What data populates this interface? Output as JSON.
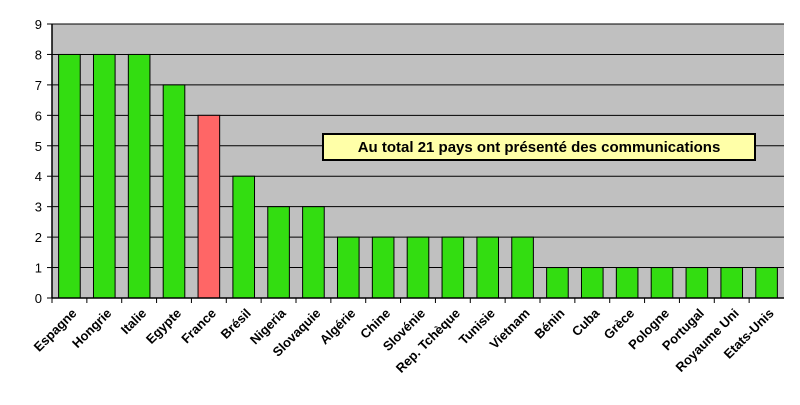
{
  "chart_data": {
    "type": "bar",
    "categories": [
      "Espagne",
      "Hongrie",
      "Italie",
      "Egypte",
      "France",
      "Brésil",
      "Nigeria",
      "Slovaquie",
      "Algérie",
      "Chine",
      "Slovénie",
      "Rep. Tchèque",
      "Tunisie",
      "Vietnam",
      "Bénin",
      "Cuba",
      "Grèce",
      "Pologne",
      "Portugal",
      "Royaume Uni",
      "Etats-Unis"
    ],
    "values": [
      8,
      8,
      8,
      7,
      6,
      4,
      3,
      3,
      2,
      2,
      2,
      2,
      2,
      2,
      1,
      1,
      1,
      1,
      1,
      1,
      1
    ],
    "highlight_index": 4,
    "ylim": [
      0,
      9
    ],
    "yticks": [
      0,
      1,
      2,
      3,
      4,
      5,
      6,
      7,
      8,
      9
    ],
    "grid": true,
    "colors": {
      "bar": "#33dd11",
      "highlight": "#ff6666",
      "plot_bg": "#c0c0c0",
      "annotation_bg": "#ffffa8"
    },
    "annotation": "Au total 21 pays ont présenté des communications"
  }
}
